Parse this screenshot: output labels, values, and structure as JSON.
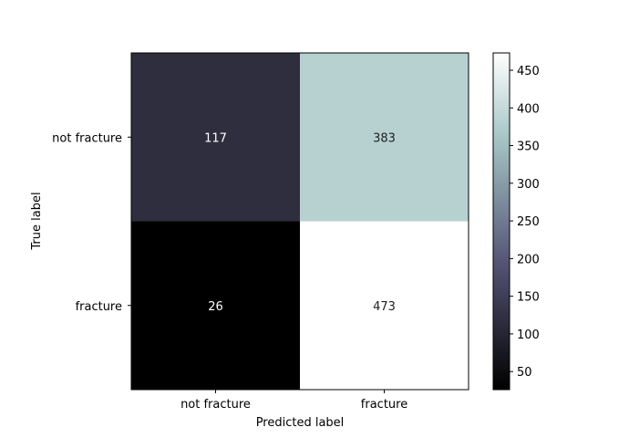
{
  "chart_data": {
    "type": "heatmap",
    "x_categories": [
      "not fracture",
      "fracture"
    ],
    "y_categories": [
      "not fracture",
      "fracture"
    ],
    "matrix": [
      [
        117,
        383
      ],
      [
        26,
        473
      ]
    ],
    "xlabel": "Predicted label",
    "ylabel": "True label",
    "colormap": "bone",
    "colorbar": {
      "range": [
        26,
        473
      ],
      "ticks": [
        50,
        100,
        150,
        200,
        250,
        300,
        350,
        400,
        450
      ]
    },
    "grid": false
  }
}
